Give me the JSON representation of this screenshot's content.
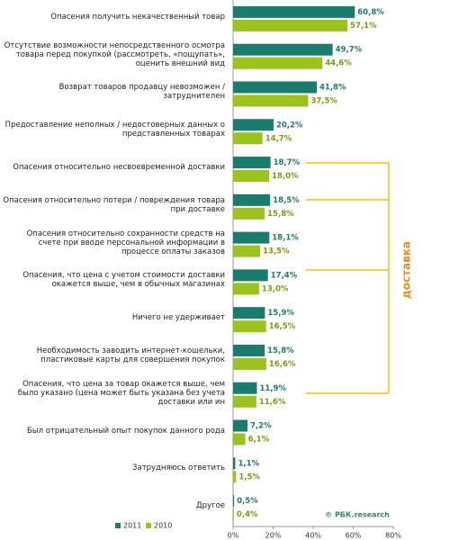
{
  "chart_data": {
    "type": "hbar",
    "categories": [
      "Опасения получить некачественный товар",
      "Отсутствие возможности непосредственного осмотра товара перед покупкой (рассмотреть, «пощупать», оценить внешний вид",
      "Возврат товаров продавцу невозможен / затруднителен",
      "Предоставление неполных / недостоверных данных о представленных товарах",
      "Опасения относительно несвоевременной доставки",
      "Опасения относительно потери / повреждения товара при доставке",
      "Опасения относительно сохранности средств на счете при вводе персональной информации в процессе оплаты заказов",
      "Опасения, что цена с учетом стоимости доставки окажется выше, чем в обычных магазинах",
      "Ничего не удерживает",
      "Необходимость заводить интернет-кошельки, пластиковые карты для совершения покупок",
      "Опасения, что цена за товар окажется выше, чем было указано (цена может быть указана без учета доставки или ин",
      "Был отрицательный опыт покупок данного рода",
      "Затрудняюсь ответить",
      "Другое"
    ],
    "series": [
      {
        "name": "2011",
        "color": "#1b7b6c",
        "values": [
          60.8,
          49.7,
          41.8,
          20.2,
          18.7,
          18.5,
          18.1,
          17.4,
          15.9,
          15.8,
          11.9,
          7.2,
          1.1,
          0.5
        ],
        "value_labels": [
          "60,8%",
          "49,7%",
          "41,8%",
          "20,2%",
          "18,7%",
          "18,5%",
          "18,1%",
          "17,4%",
          "15,9%",
          "15,8%",
          "11,9%",
          "7,2%",
          "1,1%",
          "0,5%"
        ]
      },
      {
        "name": "2010",
        "color": "#9cc21e",
        "values": [
          57.1,
          44.6,
          37.5,
          14.7,
          18.0,
          15.8,
          13.5,
          13.0,
          16.5,
          16.6,
          11.6,
          6.1,
          1.5,
          0.4
        ],
        "value_labels": [
          "57,1%",
          "44,6%",
          "37,5%",
          "14,7%",
          "18,0%",
          "15,8%",
          "13,5%",
          "13,0%",
          "16,5%",
          "16,6%",
          "11,6%",
          "6,1%",
          "1,5%",
          "0,4%"
        ]
      }
    ],
    "xlim": [
      0,
      80
    ],
    "xticks": [
      {
        "value": 0,
        "label": "0%"
      },
      {
        "value": 20,
        "label": "20%"
      },
      {
        "value": 40,
        "label": "40%"
      },
      {
        "value": 60,
        "label": "60%"
      },
      {
        "value": 80,
        "label": "80%"
      }
    ],
    "annotations": [
      "доставка"
    ],
    "source": "© РБК.research",
    "legend": "bottom-left"
  }
}
